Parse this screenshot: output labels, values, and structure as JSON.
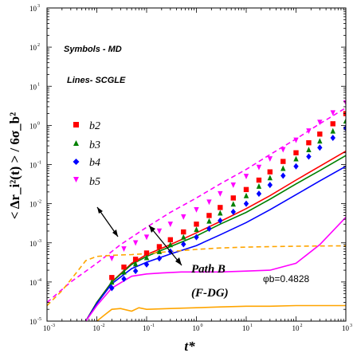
{
  "chart_data": {
    "type": "scatter",
    "xscale": "log",
    "yscale": "log",
    "xlim": [
      0.001,
      1000
    ],
    "ylim": [
      1e-05,
      1000
    ],
    "xticks": [
      "10",
      "10",
      "10",
      "10",
      "10",
      "10",
      "10"
    ],
    "xtick_exps": [
      "-3",
      "-2",
      "-1",
      "0",
      "1",
      "2",
      "3"
    ],
    "yticks": [
      "10",
      "10",
      "10",
      "10",
      "10",
      "10",
      "10",
      "10",
      "10"
    ],
    "ytick_exps": [
      "-5",
      "-4",
      "-3",
      "-2",
      "-1",
      "0",
      "1",
      "2",
      "3"
    ],
    "xlabel": "t*",
    "ylabel": "< Δr_i²(t) > / 6σ_b²",
    "annotations": {
      "symbols": "Symbols - MD",
      "lines": "Lines- SCGLE",
      "path": "Path B",
      "path_sub": "(F-DG)",
      "phi": "φb=0.4828"
    },
    "legend": {
      "placement": "left",
      "entries": [
        "b2",
        "b3",
        "b4",
        "b5"
      ]
    },
    "colors": {
      "b2": "#ff0000",
      "b3": "#008000",
      "b4": "#0000ff",
      "b5": "#ff00ff",
      "scgle_extra": "#ffa500"
    },
    "series": [
      {
        "name": "b2",
        "color": "#ff0000",
        "marker": "square",
        "x": [
          0.02,
          0.035,
          0.06,
          0.1,
          0.18,
          0.3,
          0.55,
          1,
          1.8,
          3,
          5.5,
          10,
          18,
          30,
          55,
          100,
          180,
          300,
          550,
          1000
        ],
        "y": [
          0.00013,
          0.00024,
          0.00038,
          0.00055,
          0.0008,
          0.0012,
          0.0019,
          0.003,
          0.005,
          0.008,
          0.014,
          0.023,
          0.04,
          0.065,
          0.12,
          0.2,
          0.36,
          0.6,
          1.1,
          2.0
        ]
      },
      {
        "name": "b3",
        "color": "#008000",
        "marker": "triangle",
        "x": [
          0.02,
          0.035,
          0.06,
          0.1,
          0.18,
          0.3,
          0.55,
          1,
          1.8,
          3,
          5.5,
          10,
          18,
          30,
          55,
          100,
          180,
          300,
          550,
          1000
        ],
        "y": [
          0.0001,
          0.00018,
          0.00029,
          0.00042,
          0.0006,
          0.0009,
          0.0014,
          0.0022,
          0.0036,
          0.0058,
          0.0098,
          0.016,
          0.028,
          0.046,
          0.08,
          0.14,
          0.24,
          0.4,
          0.72,
          1.3
        ]
      },
      {
        "name": "b4",
        "color": "#0000ff",
        "marker": "diamond",
        "x": [
          0.02,
          0.035,
          0.06,
          0.1,
          0.18,
          0.3,
          0.55,
          1,
          1.8,
          3,
          5.5,
          10,
          18,
          30,
          55,
          100,
          180,
          300,
          550,
          1000
        ],
        "y": [
          7e-05,
          0.00012,
          0.00019,
          0.00028,
          0.0004,
          0.0006,
          0.00092,
          0.0014,
          0.0023,
          0.0037,
          0.0062,
          0.01,
          0.018,
          0.03,
          0.052,
          0.09,
          0.16,
          0.27,
          0.48,
          0.85
        ]
      },
      {
        "name": "b5",
        "color": "#ff00ff",
        "marker": "triangle-down",
        "x": [
          0.02,
          0.035,
          0.06,
          0.1,
          0.18,
          0.3,
          0.55,
          1,
          1.8,
          3,
          5.5,
          10,
          18,
          30,
          55,
          100,
          180,
          300,
          550,
          1000
        ],
        "y": [
          0.0004,
          0.0007,
          0.001,
          0.0014,
          0.002,
          0.003,
          0.0046,
          0.007,
          0.011,
          0.018,
          0.03,
          0.05,
          0.085,
          0.14,
          0.24,
          0.42,
          0.72,
          1.2,
          2.1,
          3.8
        ]
      }
    ],
    "scgle_lines": [
      {
        "name": "b2",
        "color": "#ff0000",
        "x": [
          0.006,
          0.01,
          0.02,
          0.05,
          0.1,
          0.3,
          1,
          3,
          10,
          30,
          100,
          300,
          1000
        ],
        "y": [
          1e-05,
          3e-05,
          0.0001,
          0.0003,
          0.0005,
          0.0009,
          0.0018,
          0.0035,
          0.0075,
          0.016,
          0.04,
          0.09,
          0.22
        ]
      },
      {
        "name": "b3",
        "color": "#008000",
        "x": [
          0.006,
          0.01,
          0.02,
          0.05,
          0.1,
          0.3,
          1,
          3,
          10,
          30,
          100,
          300,
          1000
        ],
        "y": [
          1e-05,
          3e-05,
          0.0001,
          0.00028,
          0.00045,
          0.0008,
          0.0015,
          0.003,
          0.006,
          0.013,
          0.032,
          0.07,
          0.17
        ]
      },
      {
        "name": "b4",
        "color": "#0000ff",
        "x": [
          0.006,
          0.01,
          0.02,
          0.05,
          0.1,
          0.3,
          1,
          3,
          10,
          30,
          100,
          300,
          1000
        ],
        "y": [
          1e-05,
          2.8e-05,
          9e-05,
          0.00022,
          0.00032,
          0.00052,
          0.00085,
          0.0016,
          0.0033,
          0.007,
          0.017,
          0.038,
          0.09
        ]
      },
      {
        "name": "b5",
        "color": "#ff00ff",
        "x": [
          0.006,
          0.01,
          0.02,
          0.05,
          0.1,
          0.2,
          0.5,
          1,
          3,
          10,
          30,
          100,
          300,
          1000
        ],
        "y": [
          1e-05,
          2.5e-05,
          7e-05,
          0.00014,
          0.00016,
          0.00017,
          0.00018,
          0.00018,
          0.00018,
          0.00019,
          0.0002,
          0.0003,
          0.0009,
          0.0045
        ]
      },
      {
        "name": "b5-dashed",
        "color": "#ff00ff",
        "dash": true,
        "x": [
          0.001,
          0.003,
          0.01,
          0.03,
          0.1,
          0.3,
          1,
          3,
          10,
          30,
          100,
          300,
          1000
        ],
        "y": [
          3e-05,
          0.0001,
          0.0003,
          0.0009,
          0.0025,
          0.006,
          0.014,
          0.032,
          0.075,
          0.18,
          0.45,
          1.1,
          2.8
        ]
      },
      {
        "name": "orange-dashed",
        "color": "#ffa500",
        "dash": true,
        "x": [
          0.001,
          0.002,
          0.004,
          0.006,
          0.01,
          0.02,
          0.05,
          0.1,
          0.3,
          1,
          3,
          10,
          30,
          100,
          300,
          1000
        ],
        "y": [
          2.5e-05,
          6e-05,
          0.00018,
          0.00035,
          0.00045,
          0.00048,
          0.0005,
          0.00053,
          0.0006,
          0.00068,
          0.00074,
          0.00078,
          0.0008,
          0.00082,
          0.00083,
          0.00084
        ]
      },
      {
        "name": "orange-solid",
        "color": "#ffa500",
        "x": [
          0.01,
          0.015,
          0.02,
          0.03,
          0.05,
          0.07,
          0.1,
          0.3,
          1,
          3,
          10,
          30,
          100,
          300,
          1000
        ],
        "y": [
          1e-05,
          1.5e-05,
          2e-05,
          2.1e-05,
          1.8e-05,
          2.2e-05,
          2e-05,
          2.1e-05,
          2.2e-05,
          2.3e-05,
          2.4e-05,
          2.4e-05,
          2.5e-05,
          2.5e-05,
          2.5e-05
        ]
      }
    ]
  }
}
